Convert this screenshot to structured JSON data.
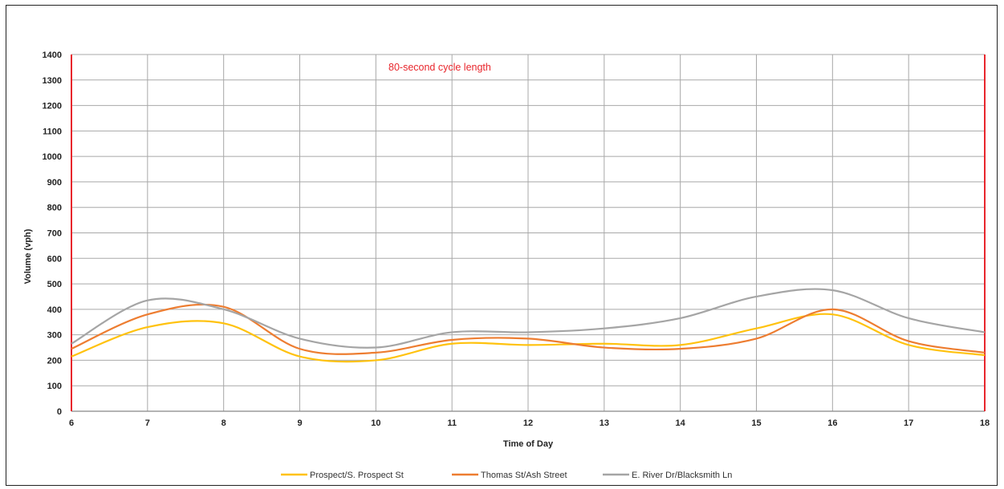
{
  "chart_data": {
    "type": "line",
    "title": "",
    "xlabel": "Time of Day",
    "ylabel": "Volume (vph)",
    "xlim": [
      6,
      18
    ],
    "ylim": [
      0,
      1400
    ],
    "x_ticks": [
      "6",
      "7",
      "8",
      "9",
      "10",
      "11",
      "12",
      "13",
      "14",
      "15",
      "16",
      "17",
      "18"
    ],
    "y_ticks": [
      "0",
      "100",
      "200",
      "300",
      "400",
      "500",
      "600",
      "700",
      "800",
      "900",
      "1000",
      "1100",
      "1200",
      "1300",
      "1400"
    ],
    "grid": true,
    "legend_position": "bottom",
    "annotation": "80-second cycle length",
    "boundary_lines_x": [
      6,
      18
    ],
    "boundary_color": "#e8262c",
    "series": [
      {
        "name": "Prospect/S. Prospect St",
        "color": "#ffc20e",
        "x": [
          6,
          7,
          8,
          9,
          10,
          11,
          12,
          13,
          14,
          15,
          16,
          17,
          18
        ],
        "y": [
          215,
          330,
          345,
          215,
          200,
          265,
          260,
          265,
          260,
          325,
          380,
          260,
          220
        ]
      },
      {
        "name": "Thomas St/Ash Street",
        "color": "#ed7d31",
        "x": [
          6,
          7,
          8,
          9,
          10,
          11,
          12,
          13,
          14,
          15,
          16,
          17,
          18
        ],
        "y": [
          245,
          380,
          410,
          245,
          230,
          280,
          285,
          250,
          245,
          285,
          400,
          275,
          230
        ]
      },
      {
        "name": "E. River Dr/Blacksmith Ln",
        "color": "#a5a5a5",
        "x": [
          6,
          7,
          8,
          9,
          10,
          11,
          12,
          13,
          14,
          15,
          16,
          17,
          18
        ],
        "y": [
          265,
          435,
          400,
          285,
          250,
          310,
          310,
          325,
          365,
          450,
          475,
          365,
          310
        ]
      }
    ]
  }
}
